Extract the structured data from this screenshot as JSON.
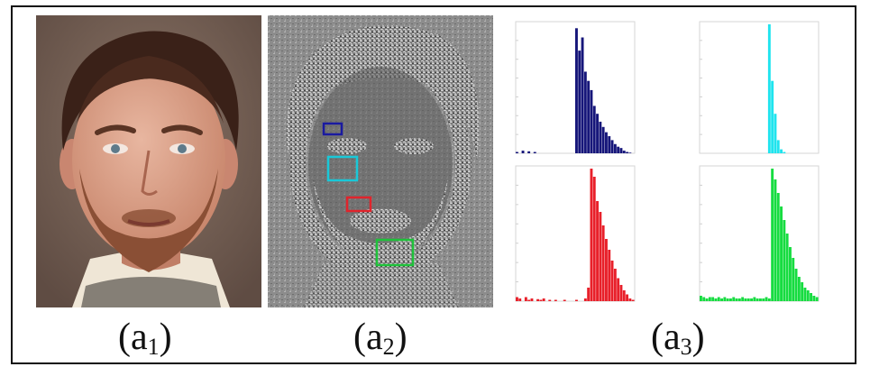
{
  "figure": {
    "captions": [
      {
        "label": "(a",
        "sub": "1",
        "close": ")"
      },
      {
        "label": "(a",
        "sub": "2",
        "close": ")"
      },
      {
        "label": "(a",
        "sub": "3",
        "close": ")"
      }
    ],
    "regions": [
      {
        "name": "forehead-region",
        "color": "#1a1aa0"
      },
      {
        "name": "cheek-region",
        "color": "#19c8d8"
      },
      {
        "name": "nose-side-region",
        "color": "#e0242c"
      },
      {
        "name": "chin-region",
        "color": "#1ec23a"
      }
    ]
  },
  "chart_data": [
    {
      "type": "bar",
      "series_color": "#16167a",
      "values": [
        0.01,
        0.0,
        0.02,
        0.0,
        0.015,
        0.0,
        0.01,
        0.0,
        0.0,
        0.0,
        0.0,
        0.0,
        0.0,
        0.0,
        0.0,
        0.0,
        0.0,
        0.0,
        0.0,
        0.0,
        0.95,
        0.78,
        0.88,
        0.62,
        0.55,
        0.48,
        0.36,
        0.3,
        0.24,
        0.2,
        0.16,
        0.13,
        0.1,
        0.07,
        0.05,
        0.04,
        0.02,
        0.01,
        0.005,
        0.0
      ]
    },
    {
      "type": "bar",
      "series_color": "#1fe4ee",
      "values": [
        0,
        0,
        0,
        0,
        0,
        0,
        0,
        0,
        0,
        0,
        0,
        0,
        0,
        0,
        0,
        0,
        0,
        0,
        0,
        0,
        0.0,
        0.0,
        0.0,
        0.98,
        0.55,
        0.3,
        0.1,
        0.03,
        0.01,
        0,
        0,
        0,
        0,
        0,
        0,
        0,
        0,
        0,
        0,
        0
      ]
    },
    {
      "type": "bar",
      "series_color": "#e8202a",
      "values": [
        0.03,
        0.02,
        0.0,
        0.03,
        0.01,
        0.02,
        0.0,
        0.015,
        0.01,
        0.02,
        0.0,
        0.01,
        0.0,
        0.01,
        0.0,
        0.0,
        0.01,
        0.0,
        0.0,
        0.0,
        0.01,
        0.0,
        0.0,
        0.02,
        0.1,
        0.98,
        0.92,
        0.74,
        0.66,
        0.56,
        0.46,
        0.38,
        0.3,
        0.24,
        0.17,
        0.12,
        0.08,
        0.05,
        0.02,
        0.01
      ]
    },
    {
      "type": "bar",
      "series_color": "#16dc40",
      "values": [
        0.04,
        0.03,
        0.02,
        0.03,
        0.03,
        0.02,
        0.03,
        0.02,
        0.03,
        0.02,
        0.02,
        0.03,
        0.02,
        0.02,
        0.03,
        0.02,
        0.02,
        0.02,
        0.03,
        0.02,
        0.02,
        0.02,
        0.03,
        0.02,
        0.98,
        0.9,
        0.8,
        0.7,
        0.6,
        0.5,
        0.4,
        0.32,
        0.24,
        0.18,
        0.14,
        0.1,
        0.08,
        0.06,
        0.04,
        0.03
      ]
    }
  ]
}
